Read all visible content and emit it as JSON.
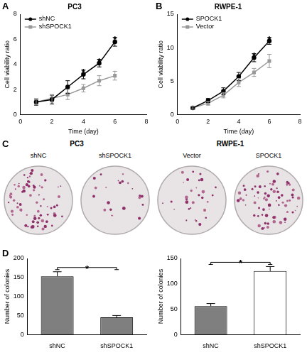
{
  "chart_data": [
    {
      "panel": "A",
      "type": "line",
      "title": "PC3",
      "x_label": "Time (day)",
      "y_label": "Cell viability ratio",
      "x": [
        1,
        2,
        3,
        4,
        5,
        6
      ],
      "series": [
        {
          "name": "shNC",
          "color": "#000000",
          "marker": "circle",
          "values": [
            1.0,
            1.2,
            2.2,
            3.2,
            4.1,
            5.8
          ],
          "errors": [
            0.25,
            0.35,
            0.5,
            0.35,
            0.3,
            0.35
          ]
        },
        {
          "name": "shSPOCK1",
          "color": "#999999",
          "marker": "square",
          "values": [
            1.0,
            1.3,
            1.6,
            2.1,
            2.7,
            3.1
          ],
          "errors": [
            0.2,
            0.3,
            0.4,
            0.3,
            0.4,
            0.35
          ]
        }
      ],
      "xlim": [
        0,
        8
      ],
      "xticks": [
        0,
        2,
        4,
        6,
        8
      ],
      "ylim": [
        0,
        8
      ],
      "yticks": [
        0,
        2,
        4,
        6,
        8
      ],
      "grid": false,
      "legend": "top-left",
      "annotations": [
        {
          "x": 4,
          "text": "*"
        },
        {
          "x": 5,
          "text": "*"
        },
        {
          "x": 6,
          "text": "*"
        }
      ]
    },
    {
      "panel": "B",
      "type": "line",
      "title": "RWPE-1",
      "x_label": "Time (day)",
      "y_label": "Cell viability ratio",
      "x": [
        1,
        2,
        3,
        4,
        5,
        6
      ],
      "series": [
        {
          "name": "SPOCK1",
          "color": "#000000",
          "marker": "circle",
          "values": [
            1.0,
            2.1,
            3.5,
            5.7,
            8.5,
            11.0
          ],
          "errors": [
            0.2,
            0.3,
            0.5,
            0.6,
            0.6,
            0.5
          ]
        },
        {
          "name": "Vector",
          "color": "#999999",
          "marker": "square",
          "values": [
            1.0,
            1.7,
            2.9,
            4.8,
            6.3,
            8.0
          ],
          "errors": [
            0.2,
            0.3,
            0.4,
            0.6,
            0.6,
            1.0
          ]
        }
      ],
      "xlim": [
        0,
        8
      ],
      "xticks": [
        0,
        2,
        4,
        6,
        8
      ],
      "ylim": [
        0,
        15
      ],
      "yticks": [
        0,
        5,
        10,
        15
      ],
      "grid": false,
      "legend": "top-left",
      "annotations": [
        {
          "x": 5,
          "text": "*"
        },
        {
          "x": 6,
          "text": "*"
        }
      ]
    },
    {
      "panel": "D",
      "type": "bar",
      "y_label": "Number of colonies",
      "categories": [
        "shNC",
        "shSPOCK1"
      ],
      "values": [
        153,
        45
      ],
      "errors": [
        12,
        5
      ],
      "colors": [
        "#7f7f7f",
        "#7f7f7f"
      ],
      "ylim": [
        0,
        200
      ],
      "yticks": [
        0,
        50,
        100,
        150,
        200
      ],
      "grid": false,
      "annotations": [
        {
          "from": "shNC",
          "to": "shSPOCK1",
          "text": "*"
        }
      ]
    },
    {
      "type": "bar",
      "y_label": "Number of colonies",
      "categories": [
        "shNC",
        "shSPOCK1"
      ],
      "values": [
        56,
        125
      ],
      "errors": [
        5,
        9
      ],
      "colors": [
        "#7f7f7f",
        "#ffffff"
      ],
      "ylim": [
        0,
        150
      ],
      "yticks": [
        0,
        50,
        100,
        150
      ],
      "grid": false,
      "annotations": [
        {
          "from": "shNC",
          "to": "shSPOCK1",
          "text": "*"
        }
      ]
    }
  ],
  "image_panel": {
    "panel": "C",
    "groups": [
      {
        "title": "PC3",
        "labels": [
          "shNC",
          "shSPOCK1"
        ]
      },
      {
        "title": "RWPE-1",
        "labels": [
          "Vector",
          "SPOCK1"
        ]
      }
    ]
  }
}
